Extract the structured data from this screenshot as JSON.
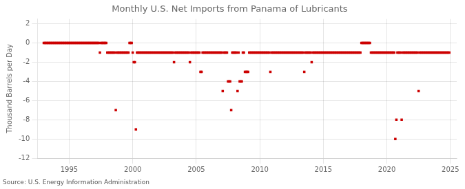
{
  "chart_data": {
    "type": "scatter",
    "title": "Monthly U.S. Net Imports from Panama of Lubricants",
    "ylabel": "Thousand Barrels per Day",
    "annotation": "Source: U.S. Energy Information Administration",
    "color": "#cc0000",
    "marker": "square",
    "grid": true,
    "xlim": [
      1992.5,
      2025.5
    ],
    "ylim": [
      -12,
      2.5
    ],
    "xticks": [
      1995,
      2000,
      2005,
      2010,
      2015,
      2020,
      2025
    ],
    "yticks": [
      2,
      0,
      -2,
      -4,
      -6,
      -8,
      -10,
      -12
    ],
    "x": [
      1993.0,
      1993.083,
      1993.167,
      1993.25,
      1993.333,
      1993.417,
      1993.5,
      1993.583,
      1993.667,
      1993.75,
      1993.833,
      1993.917,
      1994.0,
      1994.083,
      1994.167,
      1994.25,
      1994.333,
      1994.417,
      1994.5,
      1994.583,
      1994.667,
      1994.75,
      1994.833,
      1994.917,
      1995.0,
      1995.083,
      1995.167,
      1995.25,
      1995.333,
      1995.417,
      1995.5,
      1995.583,
      1995.667,
      1995.75,
      1995.833,
      1995.917,
      1996.0,
      1996.083,
      1996.167,
      1996.25,
      1996.333,
      1996.417,
      1996.5,
      1996.583,
      1996.667,
      1996.75,
      1996.833,
      1996.917,
      1997.0,
      1997.083,
      1997.167,
      1997.25,
      1997.333,
      1997.417,
      1997.5,
      1997.583,
      1997.667,
      1997.75,
      1997.833,
      1997.917,
      1998.0,
      1998.083,
      1998.167,
      1998.25,
      1998.333,
      1998.417,
      1998.5,
      1998.583,
      1998.667,
      1998.75,
      1998.833,
      1998.917,
      1999.0,
      1999.083,
      1999.167,
      1999.25,
      1999.333,
      1999.417,
      1999.5,
      1999.583,
      1999.667,
      1999.75,
      1999.833,
      1999.917,
      2000.0,
      2000.083,
      2000.167,
      2000.25,
      2000.333,
      2000.417,
      2000.5,
      2000.583,
      2000.667,
      2000.75,
      2000.833,
      2000.917,
      2001.0,
      2001.083,
      2001.167,
      2001.25,
      2001.333,
      2001.417,
      2001.5,
      2001.583,
      2001.667,
      2001.75,
      2001.833,
      2001.917,
      2002.0,
      2002.083,
      2002.167,
      2002.25,
      2002.333,
      2002.417,
      2002.5,
      2002.583,
      2002.667,
      2002.75,
      2002.833,
      2002.917,
      2003.0,
      2003.083,
      2003.167,
      2003.25,
      2003.333,
      2003.417,
      2003.5,
      2003.583,
      2003.667,
      2003.75,
      2003.833,
      2003.917,
      2004.0,
      2004.083,
      2004.167,
      2004.25,
      2004.333,
      2004.417,
      2004.5,
      2004.583,
      2004.667,
      2004.75,
      2004.833,
      2004.917,
      2005.0,
      2005.083,
      2005.167,
      2005.25,
      2005.333,
      2005.417,
      2005.5,
      2005.583,
      2005.667,
      2005.75,
      2005.833,
      2005.917,
      2006.0,
      2006.083,
      2006.167,
      2006.25,
      2006.333,
      2006.417,
      2006.5,
      2006.583,
      2006.667,
      2006.75,
      2006.833,
      2006.917,
      2007.0,
      2007.083,
      2007.167,
      2007.25,
      2007.333,
      2007.417,
      2007.5,
      2007.583,
      2007.667,
      2007.75,
      2007.833,
      2007.917,
      2008.0,
      2008.083,
      2008.167,
      2008.25,
      2008.333,
      2008.417,
      2008.5,
      2008.583,
      2008.667,
      2008.75,
      2008.833,
      2008.917,
      2009.0,
      2009.083,
      2009.167,
      2009.25,
      2009.333,
      2009.417,
      2009.5,
      2009.583,
      2009.667,
      2009.75,
      2009.833,
      2009.917,
      2010.0,
      2010.083,
      2010.167,
      2010.25,
      2010.333,
      2010.417,
      2010.5,
      2010.583,
      2010.667,
      2010.75,
      2010.833,
      2010.917,
      2011.0,
      2011.083,
      2011.167,
      2011.25,
      2011.333,
      2011.417,
      2011.5,
      2011.583,
      2011.667,
      2011.75,
      2011.833,
      2011.917,
      2012.0,
      2012.083,
      2012.167,
      2012.25,
      2012.333,
      2012.417,
      2012.5,
      2012.583,
      2012.667,
      2012.75,
      2012.833,
      2012.917,
      2013.0,
      2013.083,
      2013.167,
      2013.25,
      2013.333,
      2013.417,
      2013.5,
      2013.583,
      2013.667,
      2013.75,
      2013.833,
      2013.917,
      2014.0,
      2014.083,
      2014.167,
      2014.25,
      2014.333,
      2014.417,
      2014.5,
      2014.583,
      2014.667,
      2014.75,
      2014.833,
      2014.917,
      2015.0,
      2015.083,
      2015.167,
      2015.25,
      2015.333,
      2015.417,
      2015.5,
      2015.583,
      2015.667,
      2015.75,
      2015.833,
      2015.917,
      2016.0,
      2016.083,
      2016.167,
      2016.25,
      2016.333,
      2016.417,
      2016.5,
      2016.583,
      2016.667,
      2016.75,
      2016.833,
      2016.917,
      2017.0,
      2017.083,
      2017.167,
      2017.25,
      2017.333,
      2017.417,
      2017.5,
      2017.583,
      2017.667,
      2017.75,
      2017.833,
      2017.917,
      2018.0,
      2018.083,
      2018.167,
      2018.25,
      2018.333,
      2018.417,
      2018.5,
      2018.583,
      2018.667,
      2018.75,
      2018.833,
      2018.917,
      2019.0,
      2019.083,
      2019.167,
      2019.25,
      2019.333,
      2019.417,
      2019.5,
      2019.583,
      2019.667,
      2019.75,
      2019.833,
      2019.917,
      2020.0,
      2020.083,
      2020.167,
      2020.25,
      2020.333,
      2020.417,
      2020.5,
      2020.583,
      2020.667,
      2020.75,
      2020.833,
      2020.917,
      2021.0,
      2021.083,
      2021.167,
      2021.25,
      2021.333,
      2021.417,
      2021.5,
      2021.583,
      2021.667,
      2021.75,
      2021.833,
      2021.917,
      2022.0,
      2022.083,
      2022.167,
      2022.25,
      2022.333,
      2022.417,
      2022.5,
      2022.583,
      2022.667,
      2022.75,
      2022.833,
      2022.917,
      2023.0,
      2023.083,
      2023.167,
      2023.25,
      2023.333,
      2023.417,
      2023.5,
      2023.583,
      2023.667,
      2023.75,
      2023.833,
      2023.917,
      2024.0,
      2024.083,
      2024.167,
      2024.25,
      2024.333,
      2024.417,
      2024.5,
      2024.583,
      2024.667,
      2024.75,
      2024.833,
      2024.917
    ],
    "values": [
      0,
      0,
      0,
      0,
      0,
      0,
      0,
      0,
      0,
      0,
      0,
      0,
      0,
      0,
      0,
      0,
      0,
      0,
      0,
      0,
      0,
      0,
      0,
      0,
      0,
      0,
      0,
      0,
      0,
      0,
      0,
      0,
      0,
      0,
      0,
      0,
      0,
      0,
      0,
      0,
      0,
      0,
      0,
      0,
      0,
      0,
      0,
      0,
      0,
      0,
      0,
      0,
      0,
      -1,
      0,
      0,
      0,
      0,
      0,
      0,
      -1,
      -1,
      -1,
      -1,
      -1,
      -1,
      -1,
      -1,
      -7,
      -1,
      -1,
      -1,
      -1,
      -1,
      -1,
      -1,
      -1,
      -1,
      -1,
      -1,
      -1,
      0,
      0,
      0,
      -1,
      -2,
      -2,
      -9,
      -1,
      -1,
      -1,
      -1,
      -1,
      -1,
      -1,
      -1,
      -1,
      -1,
      -1,
      -1,
      -1,
      -1,
      -1,
      -1,
      -1,
      -1,
      -1,
      -1,
      -1,
      -1,
      -1,
      -1,
      -1,
      -1,
      -1,
      -1,
      -1,
      -1,
      -1,
      -1,
      -1,
      -1,
      -1,
      -2,
      -1,
      -1,
      -1,
      -1,
      -1,
      -1,
      -1,
      -1,
      -1,
      -1,
      -1,
      -1,
      -1,
      -1,
      -2,
      -1,
      -1,
      -1,
      -1,
      -1,
      -1,
      -1,
      -1,
      -1,
      -3,
      -3,
      -1,
      -1,
      -1,
      -1,
      -1,
      -1,
      -1,
      -1,
      -1,
      -1,
      -1,
      -1,
      -1,
      -1,
      -1,
      -1,
      -1,
      -1,
      -1,
      -5,
      -1,
      -1,
      -1,
      -1,
      -4,
      -4,
      -4,
      -7,
      -1,
      -1,
      -1,
      -1,
      -1,
      -5,
      -1,
      -4,
      -4,
      -4,
      -1,
      -1,
      -3,
      -3,
      -3,
      -3,
      -1,
      -1,
      -1,
      -1,
      -1,
      -1,
      -1,
      -1,
      -1,
      -1,
      -1,
      -1,
      -1,
      -1,
      -1,
      -1,
      -1,
      -1,
      -1,
      -1,
      -3,
      -1,
      -1,
      -1,
      -1,
      -1,
      -1,
      -1,
      -1,
      -1,
      -1,
      -1,
      -1,
      -1,
      -1,
      -1,
      -1,
      -1,
      -1,
      -1,
      -1,
      -1,
      -1,
      -1,
      -1,
      -1,
      -1,
      -1,
      -1,
      -1,
      -1,
      -1,
      -3,
      -1,
      -1,
      -1,
      -1,
      -1,
      -1,
      -2,
      -1,
      -1,
      -1,
      -1,
      -1,
      -1,
      -1,
      -1,
      -1,
      -1,
      -1,
      -1,
      -1,
      -1,
      -1,
      -1,
      -1,
      -1,
      -1,
      -1,
      -1,
      -1,
      -1,
      -1,
      -1,
      -1,
      -1,
      -1,
      -1,
      -1,
      -1,
      -1,
      -1,
      -1,
      -1,
      -1,
      -1,
      -1,
      -1,
      -1,
      -1,
      -1,
      -1,
      -1,
      -1,
      -1,
      0,
      0,
      0,
      0,
      0,
      0,
      0,
      0,
      0,
      -1,
      -1,
      -1,
      -1,
      -1,
      -1,
      -1,
      -1,
      -1,
      -1,
      -1,
      -1,
      -1,
      -1,
      -1,
      -1,
      -1,
      -1,
      -1,
      -1,
      -1,
      -1,
      -1,
      -10,
      -8,
      -1,
      -1,
      -1,
      -1,
      -8,
      -1,
      -1,
      -1,
      -1,
      -1,
      -1,
      -1,
      -1,
      -1,
      -1,
      -1,
      -1,
      -1,
      -1,
      -1,
      -5,
      -1,
      -1,
      -1,
      -1,
      -1,
      -1,
      -1,
      -1,
      -1,
      -1,
      -1,
      -1,
      -1,
      -1,
      -1,
      -1,
      -1,
      -1,
      -1,
      -1,
      -1,
      -1,
      -1,
      -1,
      -1,
      -1,
      -1,
      -1,
      -1
    ]
  }
}
